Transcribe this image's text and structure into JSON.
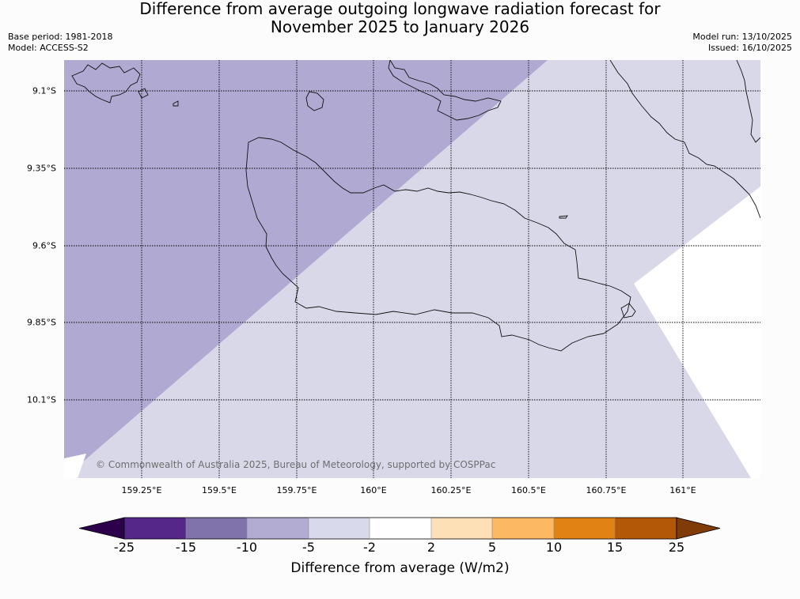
{
  "header": {
    "title_line1": "Difference from average outgoing longwave radiation forecast for",
    "title_line2": "November 2025 to January 2026",
    "base_period": "Base period: 1981-2018",
    "model": "Model: ACCESS-S2",
    "model_run": "Model run: 13/10/2025",
    "issued": "Issued: 16/10/2025"
  },
  "map": {
    "copyright": "© Commonwealth of Australia 2025, Bureau of Meteorology, supported by COSPPac",
    "lat_labels": [
      "9.1°S",
      "9.35°S",
      "9.6°S",
      "9.85°S",
      "10.1°S"
    ],
    "lon_labels": [
      "159.25°E",
      "159.5°E",
      "159.75°E",
      "160°E",
      "160.25°E",
      "160.5°E",
      "160.75°E",
      "161°E"
    ],
    "regions": [
      {
        "category": "-10 to -5",
        "color": "#b0aad3"
      },
      {
        "category": "-5 to -2",
        "color": "#d8d8e9"
      },
      {
        "category": "-2 to 2",
        "color": "#ffffff"
      }
    ]
  },
  "colorbar": {
    "label": "Difference from average (W/m2)",
    "ticks": [
      "-25",
      "-15",
      "-10",
      "-5",
      "-2",
      "2",
      "5",
      "10",
      "15",
      "25"
    ],
    "colors": {
      "extend_low": "#2d004b",
      "bins": [
        "#542788",
        "#8073ac",
        "#b2abd2",
        "#d8daeb",
        "#ffffff",
        "#fee0b6",
        "#fdb863",
        "#e08214",
        "#b35806"
      ],
      "extend_high": "#7f3b08"
    }
  }
}
